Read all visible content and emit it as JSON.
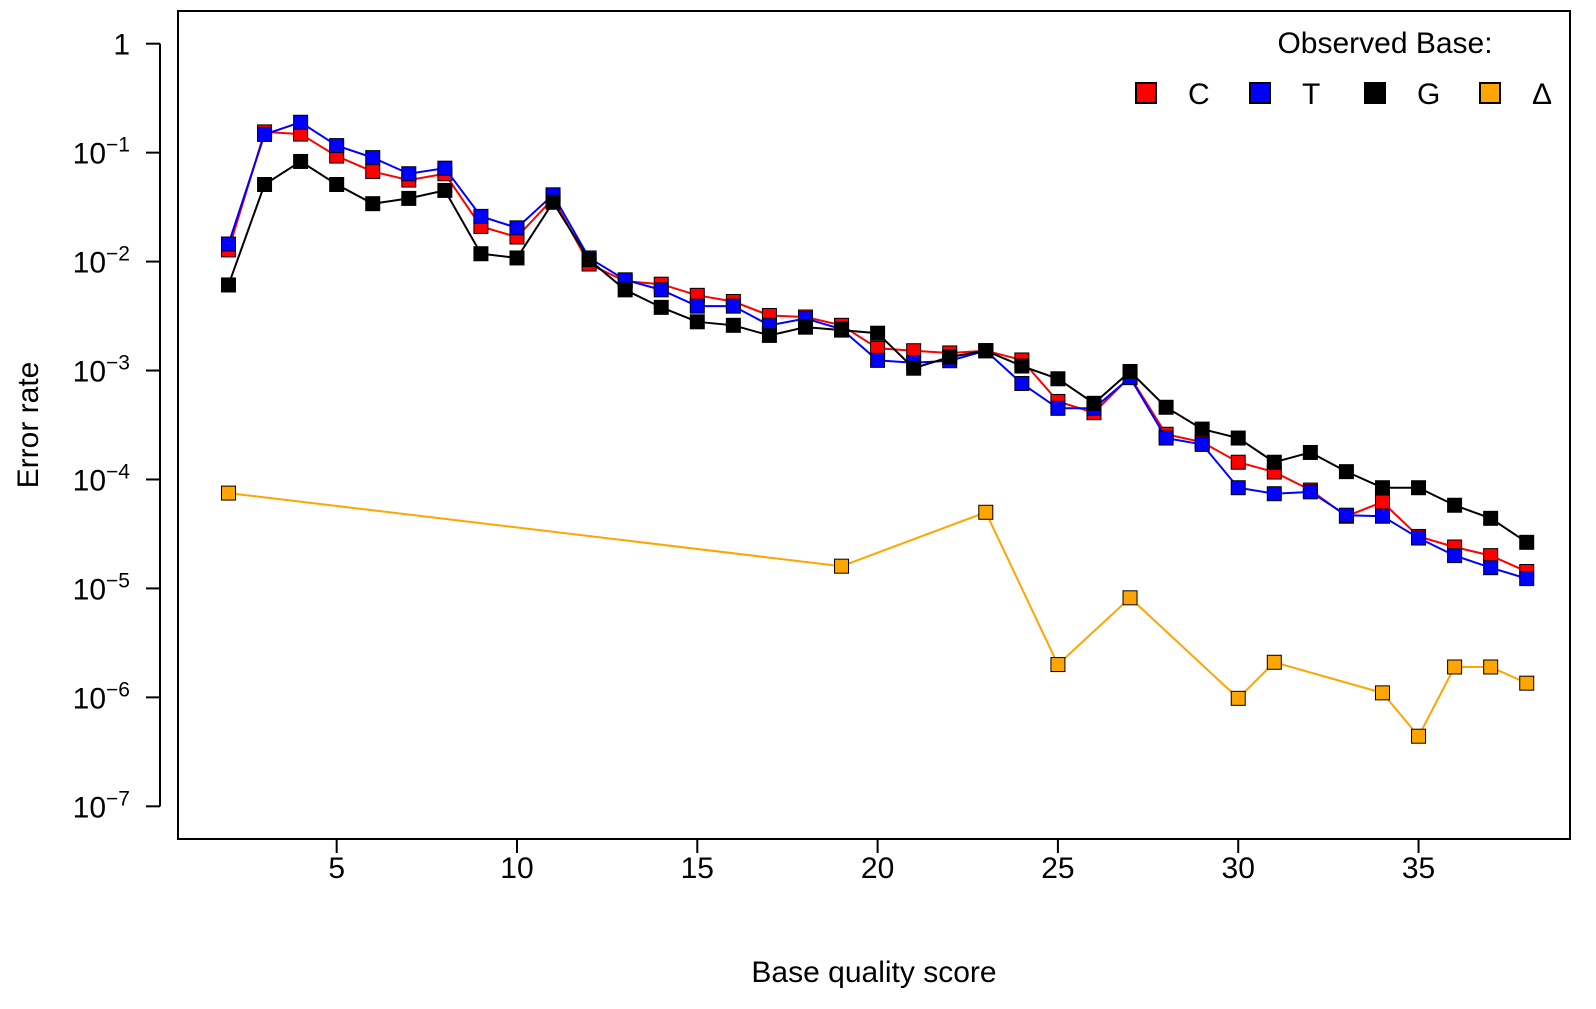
{
  "chart_data": {
    "type": "line",
    "xlabel": "Base quality score",
    "ylabel": "Error rate",
    "xlim": [
      0.6,
      39.2
    ],
    "ylim_log10": [
      -7.3,
      0.3
    ],
    "yscale": "log",
    "x_ticks": [
      5,
      10,
      15,
      20,
      25,
      30,
      35
    ],
    "y_ticks": [
      {
        "exp": 0,
        "base": "1",
        "sup": ""
      },
      {
        "exp": -1,
        "base": "10",
        "sup": "−1"
      },
      {
        "exp": -2,
        "base": "10",
        "sup": "−2"
      },
      {
        "exp": -3,
        "base": "10",
        "sup": "−3"
      },
      {
        "exp": -4,
        "base": "10",
        "sup": "−4"
      },
      {
        "exp": -5,
        "base": "10",
        "sup": "−5"
      },
      {
        "exp": -6,
        "base": "10",
        "sup": "−6"
      },
      {
        "exp": -7,
        "base": "10",
        "sup": "−7"
      }
    ],
    "grid": false,
    "legend": {
      "title": "Observed Base:",
      "position": "top-right"
    },
    "series": [
      {
        "name": "C",
        "color": "#FF0000",
        "points": [
          [
            2,
            0.0128
          ],
          [
            3,
            0.155
          ],
          [
            4,
            0.148
          ],
          [
            5,
            0.093
          ],
          [
            6,
            0.067
          ],
          [
            7,
            0.056
          ],
          [
            8,
            0.064
          ],
          [
            9,
            0.021
          ],
          [
            10,
            0.0168
          ],
          [
            11,
            0.038
          ],
          [
            12,
            0.0095
          ],
          [
            13,
            0.0066
          ],
          [
            14,
            0.0062
          ],
          [
            15,
            0.0049
          ],
          [
            16,
            0.0043
          ],
          [
            17,
            0.0032
          ],
          [
            18,
            0.0031
          ],
          [
            19,
            0.0026
          ],
          [
            20,
            0.0016
          ],
          [
            21,
            0.00152
          ],
          [
            22,
            0.00145
          ],
          [
            23,
            0.00152
          ],
          [
            24,
            0.00125
          ],
          [
            25,
            0.00052
          ],
          [
            26,
            0.00041
          ],
          [
            27,
            0.00088
          ],
          [
            28,
            0.00026
          ],
          [
            29,
            0.00022
          ],
          [
            30,
            0.000144
          ],
          [
            31,
            0.000117
          ],
          [
            32,
            8e-05
          ],
          [
            33,
            4.6e-05
          ],
          [
            34,
            6.2e-05
          ],
          [
            35,
            3e-05
          ],
          [
            36,
            2.4e-05
          ],
          [
            37,
            2e-05
          ],
          [
            38,
            1.43e-05
          ]
        ]
      },
      {
        "name": "T",
        "color": "#0000FF",
        "points": [
          [
            2,
            0.0145
          ],
          [
            3,
            0.147
          ],
          [
            4,
            0.19
          ],
          [
            5,
            0.116
          ],
          [
            6,
            0.09
          ],
          [
            7,
            0.064
          ],
          [
            8,
            0.072
          ],
          [
            9,
            0.026
          ],
          [
            10,
            0.0204
          ],
          [
            11,
            0.041
          ],
          [
            12,
            0.0108
          ],
          [
            13,
            0.0068
          ],
          [
            14,
            0.0055
          ],
          [
            15,
            0.0039
          ],
          [
            16,
            0.0039
          ],
          [
            17,
            0.0026
          ],
          [
            18,
            0.003
          ],
          [
            19,
            0.0024
          ],
          [
            20,
            0.00124
          ],
          [
            21,
            0.00118
          ],
          [
            22,
            0.00123
          ],
          [
            23,
            0.00152
          ],
          [
            24,
            0.00076
          ],
          [
            25,
            0.00045
          ],
          [
            26,
            0.00045
          ],
          [
            27,
            0.00086
          ],
          [
            28,
            0.00024
          ],
          [
            29,
            0.00021
          ],
          [
            30,
            8.4e-05
          ],
          [
            31,
            7.4e-05
          ],
          [
            32,
            7.7e-05
          ],
          [
            33,
            4.7e-05
          ],
          [
            34,
            4.6e-05
          ],
          [
            35,
            2.9e-05
          ],
          [
            36,
            2e-05
          ],
          [
            37,
            1.55e-05
          ],
          [
            38,
            1.23e-05
          ]
        ]
      },
      {
        "name": "G",
        "color": "#000000",
        "points": [
          [
            2,
            0.0061
          ],
          [
            3,
            0.051
          ],
          [
            4,
            0.083
          ],
          [
            5,
            0.051
          ],
          [
            6,
            0.034
          ],
          [
            7,
            0.038
          ],
          [
            8,
            0.045
          ],
          [
            9,
            0.0118
          ],
          [
            10,
            0.0108
          ],
          [
            11,
            0.035
          ],
          [
            12,
            0.0104
          ],
          [
            13,
            0.0055
          ],
          [
            14,
            0.0038
          ],
          [
            15,
            0.0028
          ],
          [
            16,
            0.0026
          ],
          [
            17,
            0.0021
          ],
          [
            18,
            0.0025
          ],
          [
            19,
            0.00235
          ],
          [
            20,
            0.0022
          ],
          [
            21,
            0.00105
          ],
          [
            22,
            0.00133
          ],
          [
            23,
            0.00152
          ],
          [
            24,
            0.0011
          ],
          [
            25,
            0.00084
          ],
          [
            26,
            0.0005
          ],
          [
            27,
            0.00098
          ],
          [
            28,
            0.00046
          ],
          [
            29,
            0.00029
          ],
          [
            30,
            0.00024
          ],
          [
            31,
            0.000144
          ],
          [
            32,
            0.000177
          ],
          [
            33,
            0.000118
          ],
          [
            34,
            8.4e-05
          ],
          [
            35,
            8.4e-05
          ],
          [
            36,
            5.8e-05
          ],
          [
            37,
            4.4e-05
          ],
          [
            38,
            2.65e-05
          ]
        ]
      },
      {
        "name": "Δ",
        "color": "#FFA500",
        "points": [
          [
            2,
            7.5e-05
          ],
          [
            19,
            1.6e-05
          ],
          [
            23,
            5e-05
          ],
          [
            25,
            2e-06
          ],
          [
            27,
            8.2e-06
          ],
          [
            30,
            9.8e-07
          ],
          [
            31,
            2.1e-06
          ],
          [
            34,
            1.1e-06
          ],
          [
            35,
            4.4e-07
          ],
          [
            36,
            1.9e-06
          ],
          [
            37,
            1.9e-06
          ],
          [
            38,
            1.35e-06
          ]
        ]
      }
    ]
  }
}
